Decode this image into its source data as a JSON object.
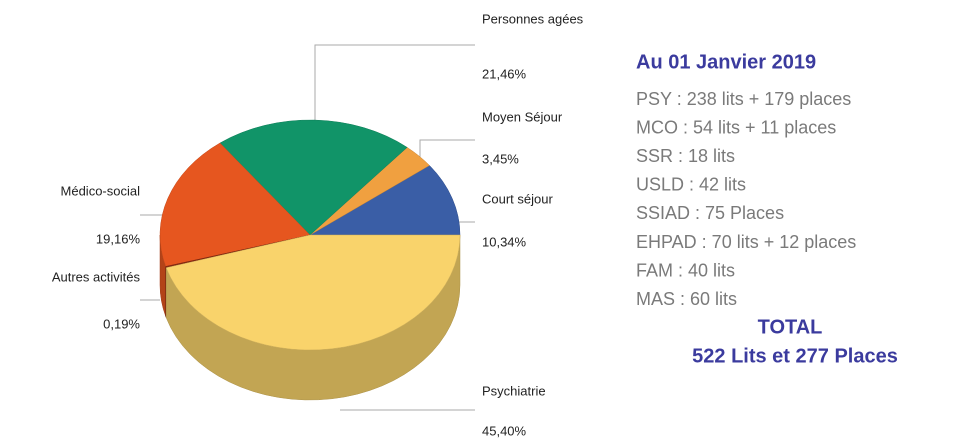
{
  "chart_data": {
    "type": "pie",
    "categories": [
      "Court séjour",
      "Moyen Séjour",
      "Personnes agées",
      "Médico-social",
      "Autres activités",
      "Psychiatrie"
    ],
    "values": [
      10.34,
      3.45,
      21.46,
      19.16,
      0.19,
      45.4
    ],
    "value_labels": [
      "10,34%",
      "3,45%",
      "21,46%",
      "19,16%",
      "0,19%",
      "45,40%"
    ],
    "colors": [
      "#3a5ea6",
      "#f0a040",
      "#119468",
      "#e6561f",
      "#8a2b12",
      "#f9d36b"
    ]
  },
  "info": {
    "title": "Au 01 Janvier 2019",
    "lines": [
      "PSY : 238 lits + 179 places",
      "MCO  : 54 lits + 11 places",
      "SSR  : 18 lits",
      "USLD : 42 lits",
      "SSIAD : 75 Places",
      "EHPAD : 70 lits + 12 places",
      "FAM : 40 lits",
      "MAS : 60 lits"
    ],
    "total_title": "TOTAL",
    "total": "522 Lits et 277 Places"
  }
}
